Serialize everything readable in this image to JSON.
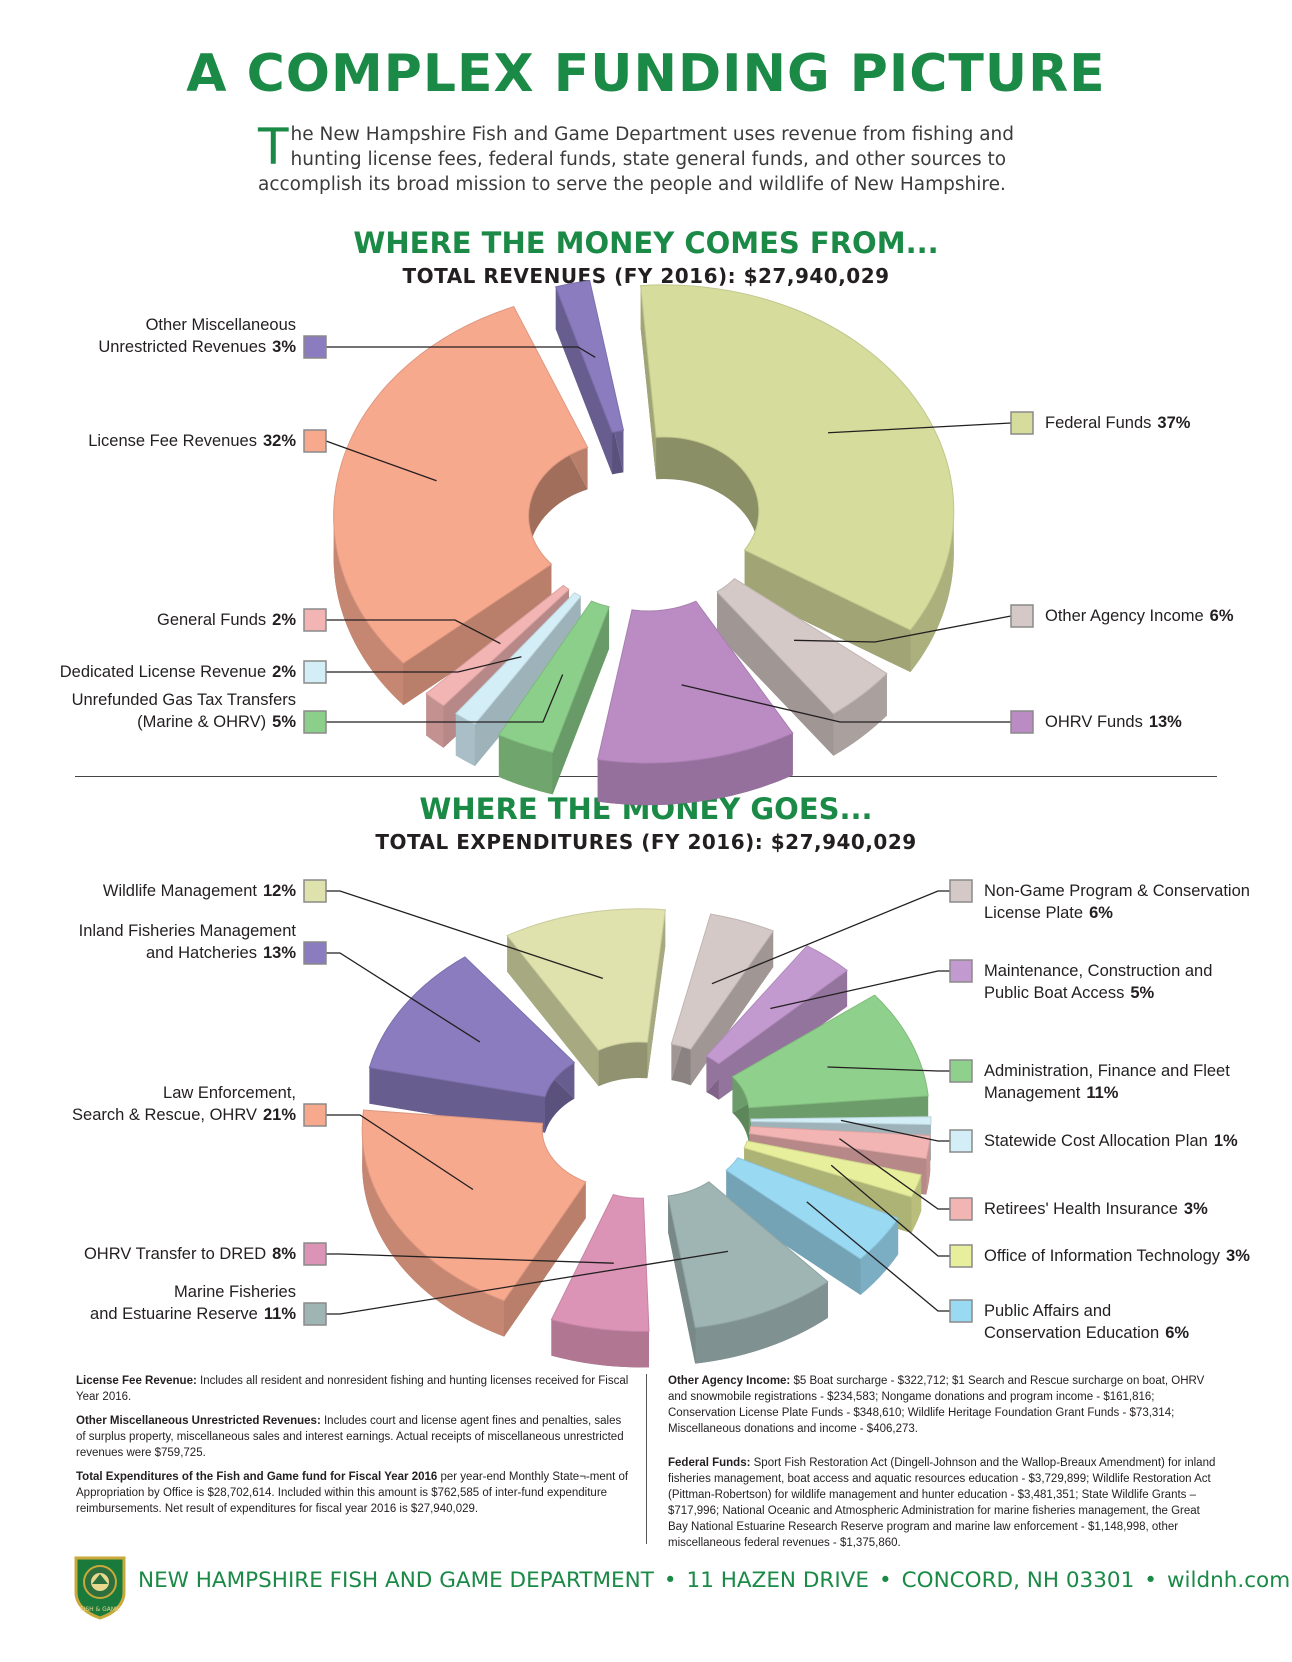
{
  "page": {
    "title": "A COMPLEX FUNDING PICTURE",
    "intro_initial": "T",
    "intro_rest": "he New Hampshire Fish and Game Department uses revenue from fishing and hunting license fees, federal funds, state general funds, and other sources to accomplish its broad mission to serve the people and wildlife of New Hampshire."
  },
  "colors": {
    "brand_green": "#1a8a46"
  },
  "chart_data": [
    {
      "type": "pie",
      "title": "WHERE THE MONEY COMES FROM...",
      "subtitle": "TOTAL REVENUES (FY 2016): $27,940,029",
      "legend": "outside-callouts",
      "slices": [
        {
          "label": "Federal Funds",
          "value": 37,
          "pct_label": "37%",
          "color": "#d6dc9c"
        },
        {
          "label": "Other Agency Income",
          "value": 6,
          "pct_label": "6%",
          "color": "#d5c9c7"
        },
        {
          "label": "OHRV Funds",
          "value": 13,
          "pct_label": "13%",
          "color": "#bb8cc4"
        },
        {
          "label": "Unrefunded Gas Tax Transfers (Marine & OHRV)",
          "label_lines": [
            "Unrefunded Gas Tax Transfers",
            "(Marine & OHRV)"
          ],
          "value": 5,
          "pct_label": "5%",
          "color": "#8ccf8a"
        },
        {
          "label": "Dedicated License Revenue",
          "value": 2,
          "pct_label": "2%",
          "color": "#d3eef7"
        },
        {
          "label": "General Funds",
          "value": 2,
          "pct_label": "2%",
          "color": "#f2b5b4"
        },
        {
          "label": "License Fee Revenues",
          "value": 32,
          "pct_label": "32%",
          "color": "#f7a98e"
        },
        {
          "label": "Other Miscellaneous Unrestricted Revenues",
          "label_lines": [
            "Other Miscellaneous",
            "Unrestricted Revenues"
          ],
          "value": 3,
          "pct_label": "3%",
          "color": "#8a7cbf"
        }
      ]
    },
    {
      "type": "pie",
      "title": "WHERE THE MONEY GOES...",
      "subtitle": "TOTAL EXPENDITURES (FY 2016): $27,940,029",
      "legend": "outside-callouts",
      "slices": [
        {
          "label": "Non-Game Program & Conservation License Plate",
          "label_lines": [
            "Non-Game Program & Conservation",
            "License Plate"
          ],
          "value": 6,
          "pct_label": "6%",
          "color": "#d5c9c7"
        },
        {
          "label": "Maintenance, Construction and Public Boat Access",
          "label_lines": [
            "Maintenance, Construction and",
            "Public Boat Access"
          ],
          "value": 5,
          "pct_label": "5%",
          "color": "#c39ad0"
        },
        {
          "label": "Administration, Finance and Fleet Management",
          "label_lines": [
            "Administration, Finance and Fleet",
            "Management"
          ],
          "value": 11,
          "pct_label": "11%",
          "color": "#8fd08c"
        },
        {
          "label": "Statewide Cost Allocation Plan",
          "value": 1,
          "pct_label": "1%",
          "color": "#d3eef7"
        },
        {
          "label": "Retirees' Health Insurance",
          "value": 3,
          "pct_label": "3%",
          "color": "#f2b5b4"
        },
        {
          "label": "Office of Information Technology",
          "value": 3,
          "pct_label": "3%",
          "color": "#e7ee9c"
        },
        {
          "label": "Public Affairs and Conservation Education",
          "label_lines": [
            "Public Affairs and",
            "Conservation Education"
          ],
          "value": 6,
          "pct_label": "6%",
          "color": "#9ad9f2"
        },
        {
          "label": "Marine Fisheries and Estuarine Reserve",
          "label_lines": [
            "Marine Fisheries",
            "and Estuarine Reserve"
          ],
          "value": 11,
          "pct_label": "11%",
          "color": "#9fb5b4"
        },
        {
          "label": "OHRV Transfer to DRED",
          "value": 8,
          "pct_label": "8%",
          "color": "#dc94b6"
        },
        {
          "label": "Law Enforcement, Search & Rescue, OHRV",
          "label_lines": [
            "Law Enforcement,",
            "Search & Rescue, OHRV"
          ],
          "value": 21,
          "pct_label": "21%",
          "color": "#f7a98e"
        },
        {
          "label": "Inland Fisheries Management and Hatcheries",
          "label_lines": [
            "Inland Fisheries Management",
            "and Hatcheries"
          ],
          "value": 13,
          "pct_label": "13%",
          "color": "#8a7cbf"
        },
        {
          "label": "Wildlife Management",
          "value": 12,
          "pct_label": "12%",
          "color": "#dfe2ac"
        }
      ]
    }
  ],
  "notes": {
    "left": [
      {
        "head": "License Fee Revenue:",
        "body": " Includes all resident and nonresident fishing and hunting licenses received for Fiscal Year 2016."
      },
      {
        "head": "Other Miscellaneous Unrestricted Revenues:",
        "body": " Includes court and license agent fines and penalties, sales of surplus property, miscellaneous sales and interest earnings. Actual receipts of miscellaneous unrestricted revenues were $759,725."
      },
      {
        "head": "Total Expenditures of the Fish and Game fund for Fiscal Year 2016",
        "body": " per year-end Monthly State¬-ment of Appropriation by Office is $28,702,614. Included within this amount is $762,585 of inter-fund expenditure reimbursements. Net result of expenditures for fiscal year 2016 is $27,940,029."
      }
    ],
    "right": [
      {
        "head": "Other Agency Income:",
        "body": " $5 Boat surcharge - $322,712; $1 Search and Rescue surcharge on boat, OHRV and snowmobile registrations - $234,583; Nongame donations and program income - $161,816; Conservation License Plate Funds - $348,610; Wildlife Heritage Foundation Grant Funds - $73,314; Miscellaneous donations and income - $406,273."
      },
      {
        "head": "Federal Funds:",
        "body": " Sport Fish Restoration Act (Dingell-Johnson and the Wallop-Breaux Amendment) for inland fisheries management, boat access and aquatic resources education - $3,729,899; Wildlife Restoration Act (Pittman-Robertson) for wildlife management and hunter education - $3,481,351; State Wildlife Grants – $717,996; National Oceanic and Atmospheric Administration for marine fisheries management, the Great Bay National Estuarine Research Reserve program and marine law enforcement - $1,148,998, other miscellaneous federal revenues - $1,375,860."
      }
    ]
  },
  "footer": {
    "org": "NEW HAMPSHIRE FISH AND GAME DEPARTMENT",
    "sep": "•",
    "address": "11 HAZEN DRIVE",
    "city": "CONCORD, NH 03301",
    "web": "wildnh.com",
    "seal_text": "FISH & GAME",
    "seal_icon": "state-seal-icon"
  }
}
